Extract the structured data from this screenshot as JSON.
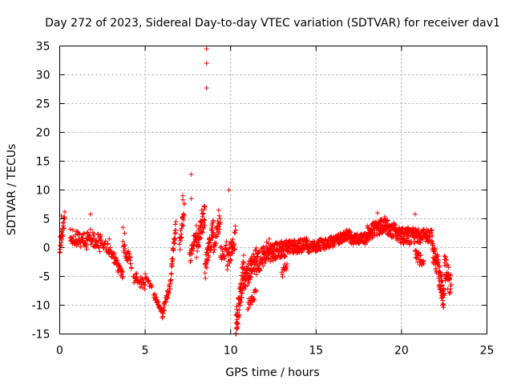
{
  "chart_data": {
    "type": "scatter",
    "title": "Day 272 of 2023, Sidereal Day-to-day VTEC variation (SDTVAR) for receiver dav1",
    "xlabel": "GPS time / hours",
    "ylabel": "SDTVAR / TECUs",
    "xlim": [
      0,
      25
    ],
    "ylim": [
      -15,
      35
    ],
    "xticks": [
      0,
      5,
      10,
      15,
      20,
      25
    ],
    "yticks": [
      -15,
      -10,
      -5,
      0,
      5,
      10,
      15,
      20,
      25,
      30,
      35
    ],
    "grid": true,
    "marker": "+",
    "color": "#ff0000",
    "series": [
      {
        "name": "SDTVAR",
        "segments": [
          {
            "x0": 0.0,
            "x1": 0.3,
            "y0": 0.0,
            "y1": 5.0,
            "n": 28,
            "jitter": 1.2
          },
          {
            "x0": 0.6,
            "x1": 1.6,
            "y0": 2.0,
            "y1": 1.0,
            "n": 60,
            "jitter": 1.3
          },
          {
            "x0": 1.6,
            "x1": 2.4,
            "y0": 2.5,
            "y1": 0.5,
            "n": 45,
            "jitter": 1.5
          },
          {
            "x0": 2.4,
            "x1": 3.2,
            "y0": 1.5,
            "y1": -2.0,
            "n": 35,
            "jitter": 1.0
          },
          {
            "x0": 3.2,
            "x1": 3.7,
            "y0": -2.0,
            "y1": -5.0,
            "n": 30,
            "jitter": 1.0
          },
          {
            "x0": 3.7,
            "x1": 4.2,
            "y0": 0.0,
            "y1": -2.5,
            "n": 30,
            "jitter": 1.2
          },
          {
            "x0": 4.3,
            "x1": 5.0,
            "y0": -5.0,
            "y1": -6.5,
            "n": 30,
            "jitter": 1.0
          },
          {
            "x0": 5.0,
            "x1": 5.4,
            "y0": -5.0,
            "y1": -7.0,
            "n": 12,
            "jitter": 0.5
          },
          {
            "x0": 5.5,
            "x1": 6.0,
            "y0": -8.0,
            "y1": -11.5,
            "n": 30,
            "jitter": 0.6
          },
          {
            "x0": 6.0,
            "x1": 6.5,
            "y0": -11.5,
            "y1": -6.0,
            "n": 35,
            "jitter": 0.8
          },
          {
            "x0": 6.5,
            "x1": 6.8,
            "y0": -5.0,
            "y1": 4.0,
            "n": 30,
            "jitter": 1.2
          },
          {
            "x0": 7.0,
            "x1": 7.3,
            "y0": 0.0,
            "y1": 7.0,
            "n": 25,
            "jitter": 1.5
          },
          {
            "x0": 7.6,
            "x1": 8.0,
            "y0": -2.0,
            "y1": 3.0,
            "n": 30,
            "jitter": 1.2
          },
          {
            "x0": 8.0,
            "x1": 8.5,
            "y0": 0.0,
            "y1": 6.0,
            "n": 50,
            "jitter": 2.0
          },
          {
            "x0": 8.5,
            "x1": 9.0,
            "y0": -4.0,
            "y1": 4.0,
            "n": 50,
            "jitter": 2.0
          },
          {
            "x0": 9.0,
            "x1": 9.4,
            "y0": 0.0,
            "y1": 5.0,
            "n": 30,
            "jitter": 1.5
          },
          {
            "x0": 9.4,
            "x1": 9.8,
            "y0": -1.0,
            "y1": 0.0,
            "n": 25,
            "jitter": 1.5
          },
          {
            "x0": 9.8,
            "x1": 10.3,
            "y0": -2.0,
            "y1": 2.0,
            "n": 40,
            "jitter": 2.0
          },
          {
            "x0": 10.3,
            "x1": 10.8,
            "y0": -14.0,
            "y1": -3.0,
            "n": 70,
            "jitter": 2.5
          },
          {
            "x0": 10.8,
            "x1": 11.5,
            "y0": -6.0,
            "y1": -2.0,
            "n": 70,
            "jitter": 2.0
          },
          {
            "x0": 11.0,
            "x1": 11.5,
            "y0": -10.0,
            "y1": -8.0,
            "n": 20,
            "jitter": 1.0
          },
          {
            "x0": 11.5,
            "x1": 12.3,
            "y0": -3.0,
            "y1": 0.0,
            "n": 70,
            "jitter": 1.8
          },
          {
            "x0": 12.3,
            "x1": 13.3,
            "y0": -1.0,
            "y1": 0.0,
            "n": 90,
            "jitter": 1.5
          },
          {
            "x0": 13.0,
            "x1": 13.3,
            "y0": -5.0,
            "y1": -3.0,
            "n": 15,
            "jitter": 1.0
          },
          {
            "x0": 13.3,
            "x1": 14.5,
            "y0": 0.0,
            "y1": 0.5,
            "n": 100,
            "jitter": 1.2
          },
          {
            "x0": 14.5,
            "x1": 16.0,
            "y0": 0.0,
            "y1": 1.0,
            "n": 110,
            "jitter": 1.0
          },
          {
            "x0": 16.0,
            "x1": 17.0,
            "y0": 1.0,
            "y1": 2.5,
            "n": 80,
            "jitter": 0.9
          },
          {
            "x0": 17.0,
            "x1": 18.0,
            "y0": 1.5,
            "y1": 1.5,
            "n": 80,
            "jitter": 1.0
          },
          {
            "x0": 18.0,
            "x1": 19.0,
            "y0": 2.5,
            "y1": 4.0,
            "n": 90,
            "jitter": 1.3
          },
          {
            "x0": 19.0,
            "x1": 20.0,
            "y0": 4.0,
            "y1": 2.0,
            "n": 90,
            "jitter": 1.5
          },
          {
            "x0": 20.0,
            "x1": 21.0,
            "y0": 2.0,
            "y1": 2.0,
            "n": 90,
            "jitter": 1.5
          },
          {
            "x0": 20.8,
            "x1": 21.3,
            "y0": -1.0,
            "y1": -3.0,
            "n": 30,
            "jitter": 1.0
          },
          {
            "x0": 21.0,
            "x1": 21.8,
            "y0": 2.0,
            "y1": 2.0,
            "n": 60,
            "jitter": 1.2
          },
          {
            "x0": 21.8,
            "x1": 22.2,
            "y0": 0.0,
            "y1": -4.0,
            "n": 40,
            "jitter": 2.0
          },
          {
            "x0": 22.2,
            "x1": 22.5,
            "y0": -5.0,
            "y1": -9.0,
            "n": 40,
            "jitter": 2.0
          },
          {
            "x0": 22.5,
            "x1": 22.9,
            "y0": -3.0,
            "y1": -7.0,
            "n": 40,
            "jitter": 2.2
          }
        ],
        "outliers": [
          {
            "x": 8.6,
            "y": 34.5
          },
          {
            "x": 8.6,
            "y": 32.0
          },
          {
            "x": 8.6,
            "y": 27.7
          },
          {
            "x": 7.7,
            "y": 12.7
          },
          {
            "x": 7.2,
            "y": 9.0
          },
          {
            "x": 7.2,
            "y": 8.3
          },
          {
            "x": 7.7,
            "y": 8.5
          },
          {
            "x": 9.9,
            "y": 10.0
          },
          {
            "x": 8.3,
            "y": 6.5
          },
          {
            "x": 9.3,
            "y": 6.5
          },
          {
            "x": 0.1,
            "y": 5.5
          },
          {
            "x": 1.8,
            "y": 5.8
          },
          {
            "x": 20.8,
            "y": 5.8
          },
          {
            "x": 18.6,
            "y": 6.0
          },
          {
            "x": 3.7,
            "y": 3.5
          },
          {
            "x": 2.9,
            "y": 1.5
          },
          {
            "x": 3.8,
            "y": 2.5
          },
          {
            "x": 4.5,
            "y": -4.5
          },
          {
            "x": 4.9,
            "y": -6.0
          },
          {
            "x": 22.4,
            "y": -10.0
          }
        ]
      }
    ]
  }
}
